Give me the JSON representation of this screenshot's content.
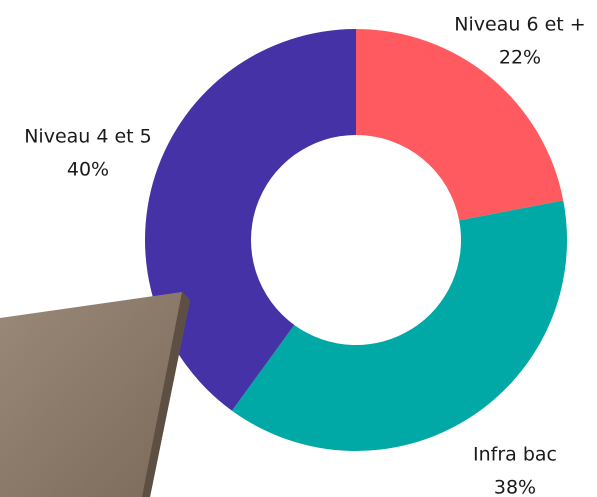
{
  "chart_data": {
    "type": "pie",
    "categories": [
      "Niveau 6 et +",
      "Infra bac",
      "Niveau 4 et 5"
    ],
    "values": [
      22,
      38,
      40
    ],
    "value_labels": [
      "22%",
      "38%",
      "40%"
    ],
    "colors": [
      "#ff5a5f",
      "#00a9a5",
      "#4532a6"
    ]
  }
}
